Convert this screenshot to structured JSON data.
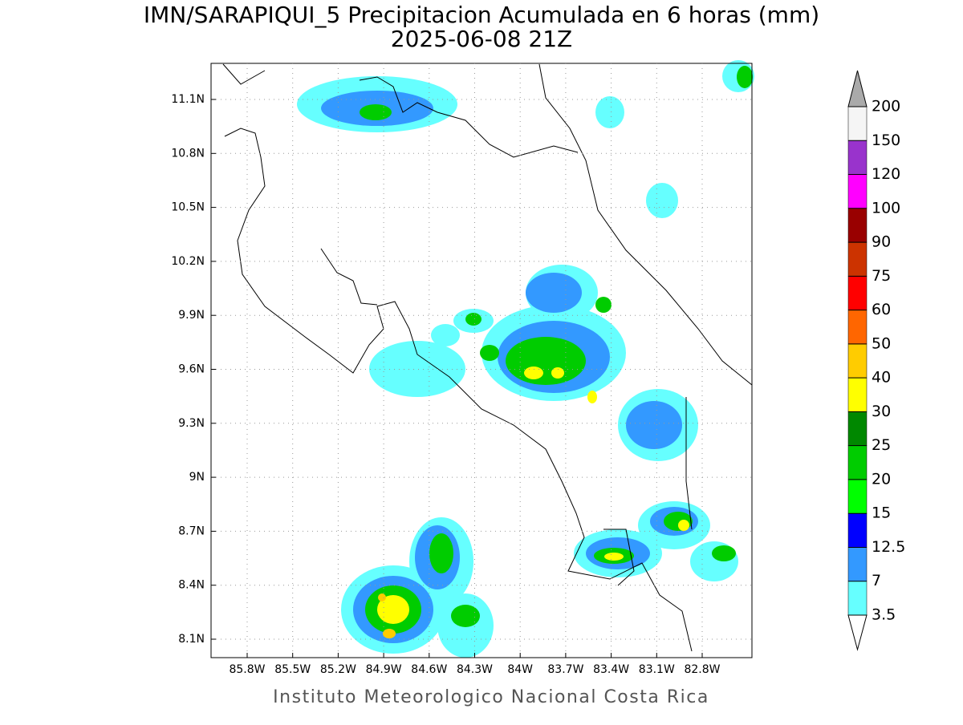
{
  "header": {
    "title": "IMN/SARAPIQUI_5 Precipitacion Acumulada en 6 horas (mm)",
    "subtitle": "2025-06-08 21Z"
  },
  "map": {
    "lon_ticks": [
      "85.8W",
      "85.5W",
      "85.2W",
      "84.9W",
      "84.6W",
      "84.3W",
      "84W",
      "83.7W",
      "83.4W",
      "83.1W",
      "82.8W"
    ],
    "lat_ticks": [
      "11.1N",
      "10.8N",
      "10.5N",
      "10.2N",
      "9.9N",
      "9.6N",
      "9.3N",
      "9N",
      "8.7N",
      "8.4N",
      "8.1N"
    ],
    "grid": true
  },
  "colorbar": {
    "levels": [
      3.5,
      7,
      12.5,
      15,
      20,
      25,
      30,
      40,
      50,
      60,
      75,
      90,
      100,
      120,
      150,
      200
    ],
    "colors": [
      "#ffffff",
      "#66ffff",
      "#3399ff",
      "#0000ff",
      "#00ff00",
      "#00cc00",
      "#008800",
      "#ffff00",
      "#ffcc00",
      "#ff6600",
      "#ff0000",
      "#cc3300",
      "#990000",
      "#ff00ff",
      "#9933cc",
      "#f5f5f5",
      "#aaaaaa"
    ]
  },
  "footer": "Instituto Meteorologico Nacional Costa Rica"
}
